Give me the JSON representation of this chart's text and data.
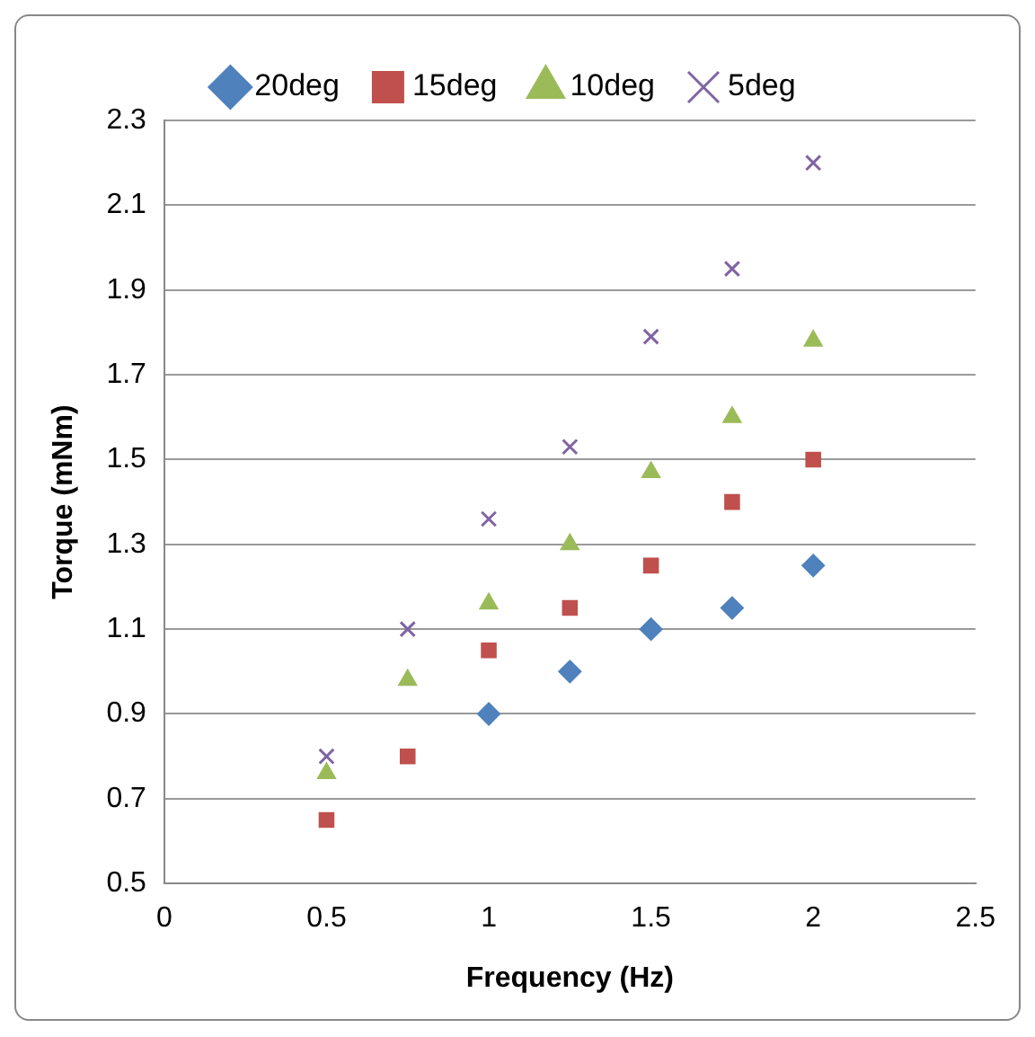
{
  "chart_data": {
    "type": "scatter",
    "xlabel": "Frequency (Hz)",
    "ylabel": "Torque (mNm)",
    "series": [
      {
        "name": "20deg",
        "color": "#4f81bd",
        "marker": "diamond",
        "x": [
          1,
          1.25,
          1.5,
          1.75,
          2
        ],
        "values": [
          0.9,
          1.0,
          1.1,
          1.15,
          1.25
        ]
      },
      {
        "name": "15deg",
        "color": "#c0504d",
        "marker": "square",
        "x": [
          0.5,
          0.75,
          1,
          1.25,
          1.5,
          1.75,
          2
        ],
        "values": [
          0.65,
          0.8,
          1.05,
          1.15,
          1.25,
          1.4,
          1.5
        ]
      },
      {
        "name": "10deg",
        "color": "#9bbb59",
        "marker": "triangle",
        "x": [
          0.5,
          0.75,
          1,
          1.25,
          1.5,
          1.75,
          2
        ],
        "values": [
          0.76,
          0.98,
          1.16,
          1.3,
          1.47,
          1.6,
          1.78
        ]
      },
      {
        "name": "5deg",
        "color": "#8064a2",
        "marker": "cross",
        "x": [
          0.5,
          0.75,
          1,
          1.25,
          1.5,
          1.75,
          2
        ],
        "values": [
          0.8,
          1.1,
          1.36,
          1.53,
          1.79,
          1.95,
          2.2
        ]
      }
    ],
    "xlim": [
      0,
      2.5
    ],
    "xticks": [
      0,
      0.5,
      1,
      1.5,
      2,
      2.5
    ],
    "ylim": [
      0.5,
      2.3
    ],
    "yticks": [
      0.5,
      0.7,
      0.9,
      1.1,
      1.3,
      1.5,
      1.7,
      1.9,
      2.1,
      2.3
    ],
    "grid": "y",
    "legend": "top"
  }
}
